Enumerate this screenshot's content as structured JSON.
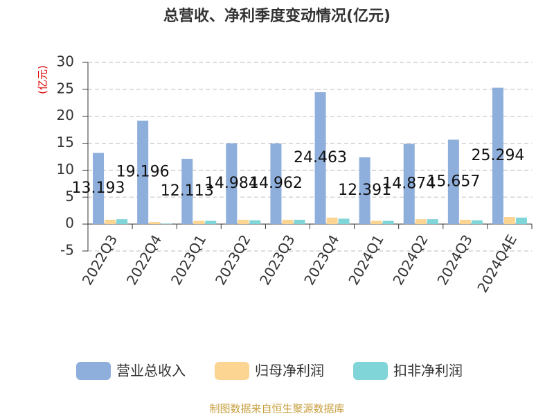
{
  "chart_data": {
    "type": "bar",
    "title": "总营收、净利季度变动情况(亿元)",
    "y_label": "(亿元)",
    "source": "制图数据来自恒生聚源数据库",
    "categories": [
      "2022Q3",
      "2022Q4",
      "2023Q1",
      "2023Q2",
      "2023Q3",
      "2023Q4",
      "2024Q1",
      "2024Q2",
      "2024Q3",
      "2024Q4E"
    ],
    "series": [
      {
        "name": "营业总收入",
        "color": "#8eaedc",
        "values": [
          13.193,
          19.196,
          12.113,
          14.984,
          14.962,
          24.463,
          12.391,
          14.874,
          15.657,
          25.294
        ],
        "show_labels": true
      },
      {
        "name": "归母净利润",
        "color": "#fdd593",
        "values": [
          0.8,
          0.4,
          0.6,
          0.8,
          0.8,
          1.2,
          0.6,
          0.9,
          0.8,
          1.3
        ]
      },
      {
        "name": "扣非净利润",
        "color": "#80d5d8",
        "values": [
          0.9,
          0.1,
          0.6,
          0.7,
          0.8,
          1.0,
          0.6,
          0.9,
          0.7,
          1.2
        ]
      }
    ],
    "ylim": [
      -5,
      30
    ],
    "yticks": [
      -5,
      0,
      5,
      10,
      15,
      20,
      25,
      30
    ],
    "grid": true
  }
}
